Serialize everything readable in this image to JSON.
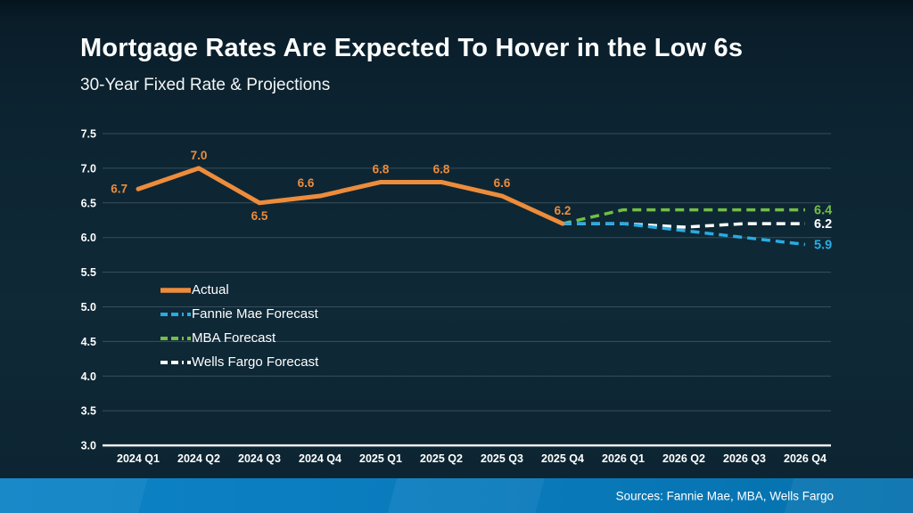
{
  "slide": {
    "title": "Mortgage Rates Are Expected To Hover in the Low 6s",
    "subtitle": "30-Year Fixed Rate & Projections",
    "source_note": "Sources: Fannie Mae, MBA, Wells Fargo"
  },
  "colors": {
    "background": "#0e2734",
    "footer_bar": "#0a7cbe",
    "axis_text": "#ffffff",
    "gridline": "#8fa3ad",
    "baseline": "#ffffff",
    "actual": "#ED8C3B",
    "fannie_mae": "#29ABE2",
    "mba": "#72BF44",
    "wells_fargo": "#FFFFFF"
  },
  "chart_data": {
    "type": "line",
    "title": "30-Year Fixed Rate & Projections",
    "categories": [
      "2024 Q1",
      "2024 Q2",
      "2024 Q3",
      "2024 Q4",
      "2025 Q1",
      "2025 Q2",
      "2025 Q3",
      "2025 Q4",
      "2026 Q1",
      "2026 Q2",
      "2026 Q3",
      "2026 Q4"
    ],
    "ylim": [
      3.0,
      7.5
    ],
    "ytick_step": 0.5,
    "grid": "horizontal",
    "legend_position": "inside-left",
    "series": [
      {
        "name": "Actual",
        "color": "#ED8C3B",
        "style": "solid",
        "start_index": 0,
        "values": [
          6.7,
          7.0,
          6.5,
          6.6,
          6.8,
          6.8,
          6.6,
          6.2
        ],
        "point_labels": [
          "6.7",
          "7.0",
          "6.5",
          "6.6",
          "6.8",
          "6.8",
          "6.6",
          "6.2"
        ],
        "label_positions": [
          "left",
          "above",
          "below",
          "above-left",
          "above",
          "above",
          "above",
          "above"
        ]
      },
      {
        "name": "Fannie Mae Forecast",
        "color": "#29ABE2",
        "style": "dashed",
        "start_index": 7,
        "values": [
          6.2,
          6.2,
          6.1,
          6.0,
          5.9
        ],
        "end_label": "5.9"
      },
      {
        "name": "MBA Forecast",
        "color": "#72BF44",
        "style": "dashed",
        "start_index": 7,
        "values": [
          6.2,
          6.4,
          6.4,
          6.4,
          6.4
        ],
        "end_label": "6.4"
      },
      {
        "name": "Wells Fargo Forecast",
        "color": "#FFFFFF",
        "style": "dashed",
        "start_index": 7,
        "values": [
          6.2,
          6.2,
          6.15,
          6.2,
          6.2
        ],
        "end_label": "6.2"
      }
    ]
  }
}
